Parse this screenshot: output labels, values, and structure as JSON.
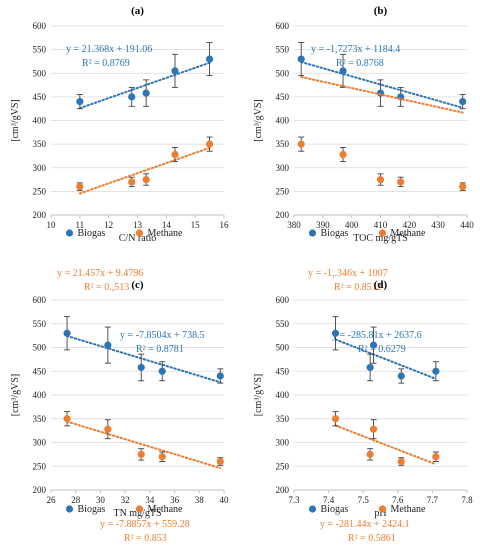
{
  "colors": {
    "biogas": "#2e75b6",
    "methane": "#ed7d31",
    "grid": "#d9d9d9",
    "axis": "#bfbfbf",
    "errbar": "#404040"
  },
  "chart_data": [
    {
      "type": "scatter",
      "title": "(a)",
      "xlabel": "C/N ratio",
      "ylabel": "[cm³/gVS]",
      "xlim": [
        10,
        16
      ],
      "xticks": [
        10,
        11,
        12,
        13,
        14,
        15,
        16
      ],
      "ylim": [
        200,
        600
      ],
      "yticks": [
        200,
        250,
        300,
        350,
        400,
        450,
        500,
        550,
        600
      ],
      "grid": "horizontal",
      "legend_position": "bottom",
      "series": [
        {
          "name": "Biogas",
          "color": "#2e75b6",
          "x": [
            11,
            12.8,
            13.3,
            14.3,
            15.5
          ],
          "y": [
            440,
            450,
            458,
            505,
            530
          ],
          "err": [
            15,
            20,
            28,
            35,
            35
          ],
          "trend": {
            "slope": 21.368,
            "intercept": 191.06,
            "x_range": [
              11,
              15.5
            ]
          },
          "equation": "y = 21.368x + 191.06",
          "r2": "R² = 0.8769"
        },
        {
          "name": "Methane",
          "color": "#ed7d31",
          "x": [
            11,
            12.8,
            13.3,
            14.3,
            15.5
          ],
          "y": [
            260,
            270,
            275,
            328,
            350
          ],
          "err": [
            8,
            10,
            12,
            15,
            15
          ],
          "trend": {
            "slope": 21.457,
            "intercept": 9.4796,
            "x_range": [
              11,
              15.5
            ]
          },
          "equation": "y = 21.457x + 9.4796",
          "r2": "R² = 0.,513"
        }
      ]
    },
    {
      "type": "scatter",
      "title": "(b)",
      "xlabel": "TOC mg/gTS",
      "ylabel": "[cm³/gVS]",
      "xlim": [
        380,
        440
      ],
      "xticks": [
        380,
        390,
        400,
        410,
        420,
        430,
        440
      ],
      "ylim": [
        200,
        600
      ],
      "yticks": [
        200,
        250,
        300,
        350,
        400,
        450,
        500,
        550,
        600
      ],
      "grid": "horizontal",
      "legend_position": "bottom",
      "series": [
        {
          "name": "Biogas",
          "color": "#2e75b6",
          "x": [
            382.5,
            397,
            410,
            417,
            438.5
          ],
          "y": [
            530,
            505,
            458,
            450,
            440
          ],
          "err": [
            35,
            35,
            28,
            20,
            15
          ],
          "trend": {
            "slope": -1.7273,
            "intercept": 1184.4,
            "x_range": [
              382.5,
              438.5
            ]
          },
          "equation": "y = -1,7273x + 1184.4",
          "r2": "R² = 0.8768"
        },
        {
          "name": "Methane",
          "color": "#ed7d31",
          "x": [
            382.5,
            397,
            410,
            417,
            438.5
          ],
          "y": [
            350,
            328,
            275,
            270,
            260
          ],
          "err": [
            15,
            15,
            12,
            10,
            8
          ],
          "trend": {
            "slope": -1.346,
            "intercept": 1007,
            "x_range": [
              382.5,
              438.5
            ]
          },
          "equation": "y = -1,.346x + 1007",
          "r2": "R² = 0.8512"
        }
      ]
    },
    {
      "type": "scatter",
      "title": "(c)",
      "xlabel": "TN mg/gTS",
      "ylabel": "[cm³/gVS]",
      "xlim": [
        26,
        40
      ],
      "xticks": [
        26,
        28,
        30,
        32,
        34,
        36,
        38,
        40
      ],
      "ylim": [
        200,
        600
      ],
      "yticks": [
        200,
        250,
        300,
        350,
        400,
        450,
        500,
        550,
        600
      ],
      "grid": "horizontal",
      "legend_position": "bottom",
      "series": [
        {
          "name": "Biogas",
          "color": "#2e75b6",
          "x": [
            27.3,
            30.6,
            33.3,
            35,
            39.7
          ],
          "y": [
            530,
            505,
            458,
            450,
            440
          ],
          "err": [
            35,
            38,
            28,
            20,
            15
          ],
          "trend": {
            "slope": -7.8504,
            "intercept": 738.5,
            "x_range": [
              27.3,
              39.7
            ]
          },
          "equation": "y = -7.8504x + 738.5",
          "r2": "R² = 0.8781"
        },
        {
          "name": "Methane",
          "color": "#ed7d31",
          "x": [
            27.3,
            30.6,
            33.3,
            35,
            39.7
          ],
          "y": [
            350,
            328,
            275,
            270,
            260
          ],
          "err": [
            15,
            20,
            12,
            10,
            8
          ],
          "trend": {
            "slope": -7.8857,
            "intercept": 559.28,
            "x_range": [
              27.3,
              39.7
            ]
          },
          "equation": "y = -7.8857x + 559.28",
          "r2": "R² = 0.853"
        }
      ]
    },
    {
      "type": "scatter",
      "title": "(d)",
      "xlabel": "pH",
      "ylabel": "[cm³/gVS]",
      "xlim": [
        7.3,
        7.8
      ],
      "xticks": [
        7.3,
        7.4,
        7.5,
        7.6,
        7.7,
        7.8
      ],
      "ylim": [
        200,
        600
      ],
      "yticks": [
        200,
        250,
        300,
        350,
        400,
        450,
        500,
        550,
        600
      ],
      "grid": "horizontal",
      "legend_position": "bottom",
      "series": [
        {
          "name": "Biogas",
          "color": "#2e75b6",
          "x": [
            7.42,
            7.52,
            7.53,
            7.61,
            7.71
          ],
          "y": [
            530,
            458,
            505,
            440,
            450
          ],
          "err": [
            35,
            28,
            38,
            15,
            20
          ],
          "trend": {
            "slope": -285.81,
            "intercept": 2637.6,
            "x_range": [
              7.42,
              7.71
            ]
          },
          "equation": "y = -285.81x + 2637.6",
          "r2": "R² = 0.6279"
        },
        {
          "name": "Methane",
          "color": "#ed7d31",
          "x": [
            7.42,
            7.52,
            7.53,
            7.61,
            7.71
          ],
          "y": [
            350,
            275,
            328,
            260,
            270
          ],
          "err": [
            15,
            12,
            20,
            8,
            10
          ],
          "trend": {
            "slope": -281.44,
            "intercept": 2424.1,
            "x_range": [
              7.42,
              7.71
            ]
          },
          "equation": "y = -281.44x + 2424.1",
          "r2": "R² = 0.5861"
        }
      ]
    }
  ]
}
